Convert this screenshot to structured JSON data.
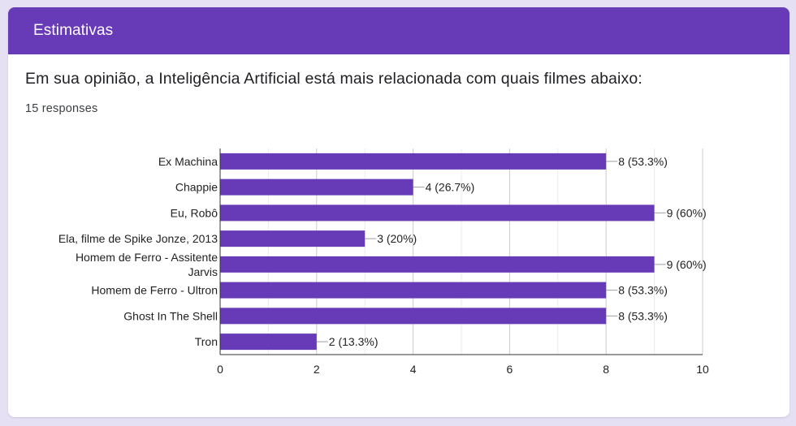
{
  "card": {
    "title": "Estimativas"
  },
  "question": {
    "text": "Em sua opinião, a Inteligência Artificial está mais relacionada com quais filmes abaixo:",
    "responses": "15 responses"
  },
  "colors": {
    "accent": "#673ab7",
    "bar": "#673ab7",
    "background": "#e6e0f5"
  },
  "chart_data": {
    "type": "bar",
    "orientation": "horizontal",
    "categories": [
      [
        "Ex Machina"
      ],
      [
        "Chappie"
      ],
      [
        "Eu, Robô"
      ],
      [
        "Ela, filme de Spike Jonze, 2013"
      ],
      [
        "Homem de Ferro - Assitente",
        "Jarvis"
      ],
      [
        "Homem de Ferro - Ultron"
      ],
      [
        "Ghost In The Shell"
      ],
      [
        "Tron"
      ]
    ],
    "values": [
      8,
      4,
      9,
      3,
      9,
      8,
      8,
      2
    ],
    "data_labels": [
      "8 (53.3%)",
      "4 (26.7%)",
      "9 (60%)",
      "3 (20%)",
      "9 (60%)",
      "8 (53.3%)",
      "8 (53.3%)",
      "2 (13.3%)"
    ],
    "xlim": [
      0,
      10
    ],
    "xticks": [
      0,
      2,
      4,
      6,
      8,
      10
    ],
    "grid": true,
    "legend": "none"
  }
}
